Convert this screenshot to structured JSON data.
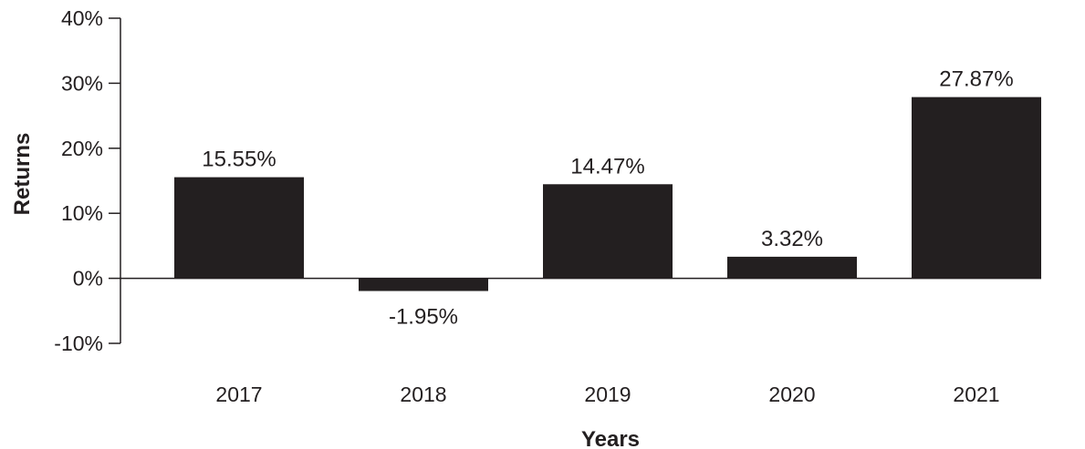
{
  "chart_data": {
    "type": "bar",
    "categories": [
      "2017",
      "2018",
      "2019",
      "2020",
      "2021"
    ],
    "values": [
      15.55,
      -1.95,
      14.47,
      3.32,
      27.87
    ],
    "data_labels": [
      "15.55%",
      "-1.95%",
      "14.47%",
      "3.32%",
      "27.87%"
    ],
    "title": "",
    "xlabel": "Years",
    "ylabel": "Returns",
    "ylim": [
      -10,
      40
    ],
    "yticks": [
      40,
      30,
      20,
      10,
      0,
      -10
    ],
    "ytick_labels": [
      "40%",
      "30%",
      "20%",
      "10%",
      "0%",
      "-10%"
    ],
    "grid": false,
    "legend": "none",
    "bar_color": "#231f20"
  }
}
